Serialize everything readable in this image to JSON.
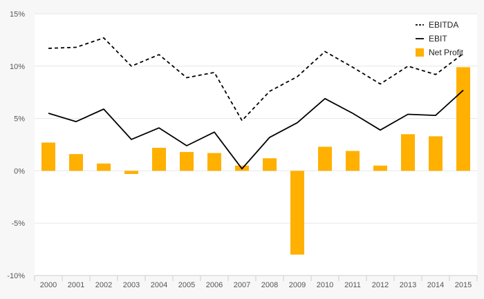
{
  "chart_data": {
    "type": "bar+line",
    "title": "",
    "xlabel": "",
    "ylabel": "",
    "categories": [
      "2000",
      "2001",
      "2002",
      "2003",
      "2004",
      "2005",
      "2006",
      "2007",
      "2008",
      "2009",
      "2010",
      "2011",
      "2012",
      "2013",
      "2014",
      "2015"
    ],
    "ylim": [
      -10,
      15
    ],
    "yticks": [
      -10,
      -5,
      0,
      5,
      10,
      15
    ],
    "ytick_labels": [
      "-10%",
      "-5%",
      "0%",
      "5%",
      "10%",
      "15%"
    ],
    "grid": true,
    "legend_position": "top-right",
    "series": [
      {
        "name": "EBITDA",
        "kind": "line",
        "style": "dashed",
        "color": "#000000",
        "values": [
          11.7,
          11.8,
          12.7,
          10.0,
          11.1,
          8.9,
          9.4,
          4.8,
          7.6,
          9.0,
          11.4,
          9.9,
          8.3,
          10.0,
          9.2,
          11.2
        ]
      },
      {
        "name": "EBIT",
        "kind": "line",
        "style": "solid",
        "color": "#000000",
        "values": [
          5.5,
          4.7,
          5.9,
          3.0,
          4.1,
          2.4,
          3.7,
          0.2,
          3.2,
          4.6,
          6.9,
          5.5,
          3.9,
          5.4,
          5.3,
          7.7
        ]
      },
      {
        "name": "Net Profit",
        "kind": "bar",
        "color": "#ffb000",
        "values": [
          2.7,
          1.6,
          0.7,
          -0.3,
          2.2,
          1.8,
          1.7,
          0.5,
          1.2,
          -8.0,
          2.3,
          1.9,
          0.5,
          3.5,
          3.3,
          9.9
        ]
      }
    ]
  }
}
